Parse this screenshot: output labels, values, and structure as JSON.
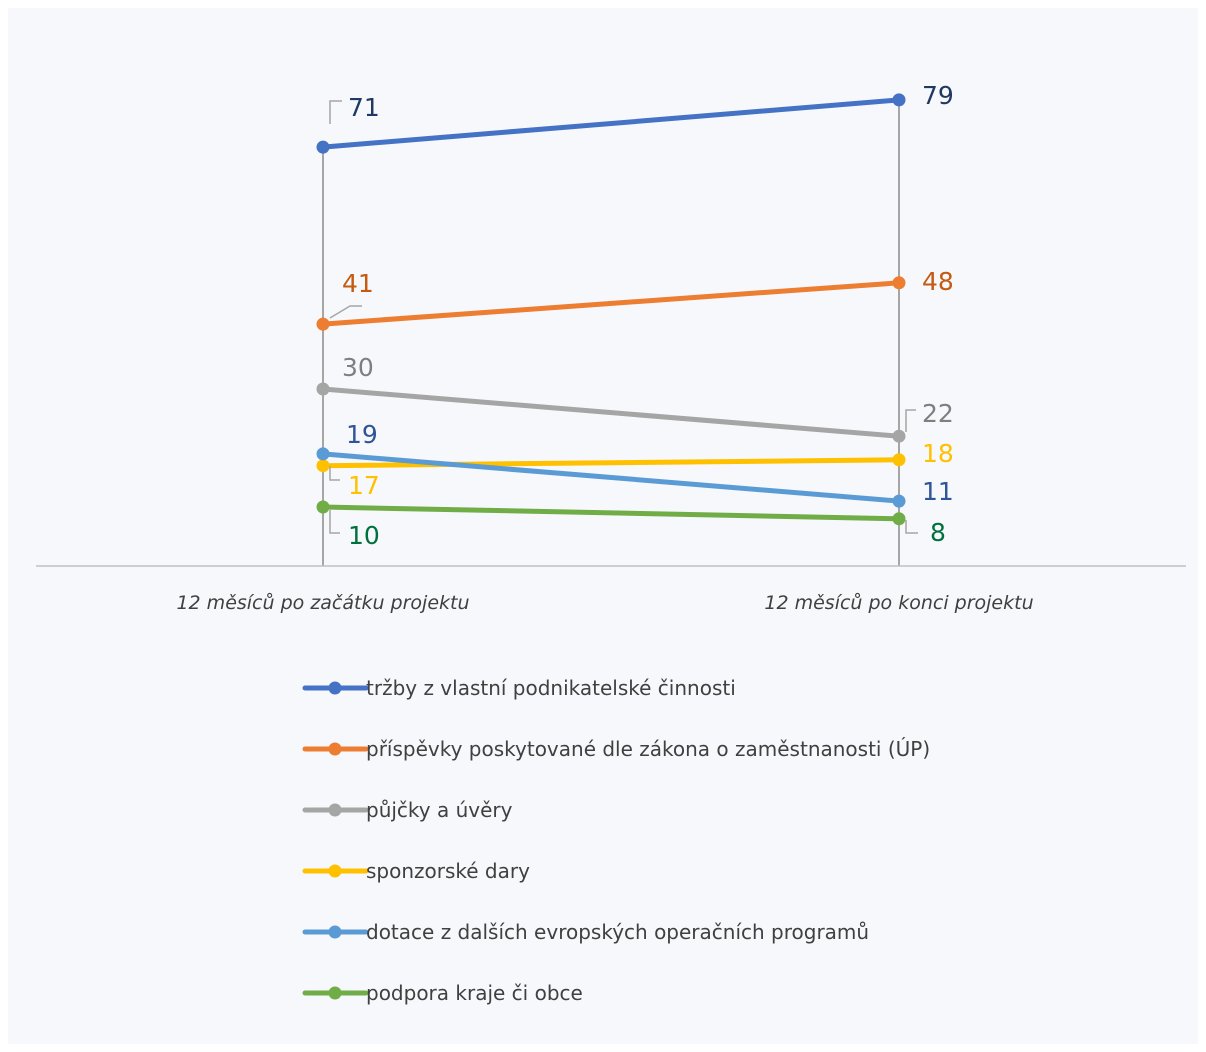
{
  "chart_data": {
    "type": "line",
    "categories": [
      "12 měsíců po začátku projektu",
      "12 měsíců po konci projektu"
    ],
    "series": [
      {
        "name": "tržby z vlastní podnikatelské činnosti",
        "values": [
          71,
          79
        ],
        "color": "#4472c4",
        "label_color": "#1f3864"
      },
      {
        "name": "příspěvky poskytované dle zákona o zaměstnanosti (ÚP)",
        "values": [
          41,
          48
        ],
        "color": "#ed7d31",
        "label_color": "#c55a11"
      },
      {
        "name": "půjčky a úvěry",
        "values": [
          30,
          22
        ],
        "color": "#a5a5a5",
        "label_color": "#7f7f7f"
      },
      {
        "name": "sponzorské dary",
        "values": [
          17,
          18
        ],
        "color": "#ffc000",
        "label_color": "#ffc000"
      },
      {
        "name": "dotace z dalších evropských operačních programů",
        "values": [
          19,
          11
        ],
        "color": "#5b9bd5",
        "label_color": "#2f5597"
      },
      {
        "name": "podpora kraje či obce",
        "values": [
          10,
          8
        ],
        "color": "#70ad47",
        "label_color": "#00703c"
      }
    ],
    "ylim": [
      0,
      80
    ],
    "grid": false,
    "legend": "bottom",
    "axis_line_color": "#bfbfbf",
    "drop_line_color": "#a6a6a6"
  }
}
